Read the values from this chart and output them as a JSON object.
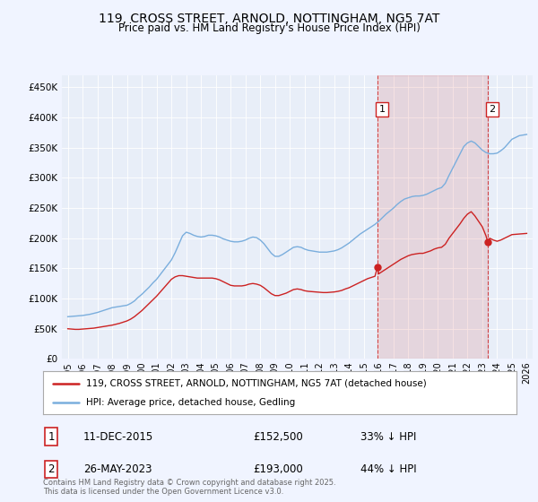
{
  "title": "119, CROSS STREET, ARNOLD, NOTTINGHAM, NG5 7AT",
  "subtitle": "Price paid vs. HM Land Registry's House Price Index (HPI)",
  "background_color": "#f0f4ff",
  "plot_bg_color": "#e8eef8",
  "ylim": [
    0,
    470000
  ],
  "yticks": [
    0,
    50000,
    100000,
    150000,
    200000,
    250000,
    300000,
    350000,
    400000,
    450000
  ],
  "ytick_labels": [
    "£0",
    "£50K",
    "£100K",
    "£150K",
    "£200K",
    "£250K",
    "£300K",
    "£350K",
    "£400K",
    "£450K"
  ],
  "hpi_color": "#7aaedd",
  "price_color": "#cc2222",
  "marker1_year": 2015.92,
  "marker1_price": 152500,
  "marker1_label": "1",
  "marker2_year": 2023.38,
  "marker2_price": 193000,
  "marker2_label": "2",
  "sale1_date": "11-DEC-2015",
  "sale1_price": "£152,500",
  "sale1_note": "33% ↓ HPI",
  "sale2_date": "26-MAY-2023",
  "sale2_price": "£193,000",
  "sale2_note": "44% ↓ HPI",
  "legend_line1": "119, CROSS STREET, ARNOLD, NOTTINGHAM, NG5 7AT (detached house)",
  "legend_line2": "HPI: Average price, detached house, Gedling",
  "footer": "Contains HM Land Registry data © Crown copyright and database right 2025.\nThis data is licensed under the Open Government Licence v3.0.",
  "hpi_data": [
    [
      1995.0,
      70000
    ],
    [
      1995.25,
      70500
    ],
    [
      1995.5,
      71000
    ],
    [
      1995.75,
      71500
    ],
    [
      1996.0,
      72000
    ],
    [
      1996.25,
      73000
    ],
    [
      1996.5,
      74000
    ],
    [
      1996.75,
      75500
    ],
    [
      1997.0,
      77000
    ],
    [
      1997.25,
      79000
    ],
    [
      1997.5,
      81000
    ],
    [
      1997.75,
      83000
    ],
    [
      1998.0,
      85000
    ],
    [
      1998.25,
      86000
    ],
    [
      1998.5,
      87000
    ],
    [
      1998.75,
      88000
    ],
    [
      1999.0,
      89000
    ],
    [
      1999.25,
      92000
    ],
    [
      1999.5,
      96000
    ],
    [
      1999.75,
      102000
    ],
    [
      2000.0,
      107000
    ],
    [
      2000.25,
      113000
    ],
    [
      2000.5,
      119000
    ],
    [
      2000.75,
      126000
    ],
    [
      2001.0,
      132000
    ],
    [
      2001.25,
      140000
    ],
    [
      2001.5,
      148000
    ],
    [
      2001.75,
      156000
    ],
    [
      2002.0,
      164000
    ],
    [
      2002.25,
      176000
    ],
    [
      2002.5,
      190000
    ],
    [
      2002.75,
      204000
    ],
    [
      2003.0,
      210000
    ],
    [
      2003.25,
      208000
    ],
    [
      2003.5,
      205000
    ],
    [
      2003.75,
      203000
    ],
    [
      2004.0,
      202000
    ],
    [
      2004.25,
      203000
    ],
    [
      2004.5,
      205000
    ],
    [
      2004.75,
      205000
    ],
    [
      2005.0,
      204000
    ],
    [
      2005.25,
      202000
    ],
    [
      2005.5,
      199000
    ],
    [
      2005.75,
      197000
    ],
    [
      2006.0,
      195000
    ],
    [
      2006.25,
      194000
    ],
    [
      2006.5,
      194000
    ],
    [
      2006.75,
      195000
    ],
    [
      2007.0,
      197000
    ],
    [
      2007.25,
      200000
    ],
    [
      2007.5,
      202000
    ],
    [
      2007.75,
      201000
    ],
    [
      2008.0,
      197000
    ],
    [
      2008.25,
      191000
    ],
    [
      2008.5,
      183000
    ],
    [
      2008.75,
      175000
    ],
    [
      2009.0,
      170000
    ],
    [
      2009.25,
      170000
    ],
    [
      2009.5,
      173000
    ],
    [
      2009.75,
      177000
    ],
    [
      2010.0,
      181000
    ],
    [
      2010.25,
      185000
    ],
    [
      2010.5,
      186000
    ],
    [
      2010.75,
      185000
    ],
    [
      2011.0,
      182000
    ],
    [
      2011.25,
      180000
    ],
    [
      2011.5,
      179000
    ],
    [
      2011.75,
      178000
    ],
    [
      2012.0,
      177000
    ],
    [
      2012.25,
      177000
    ],
    [
      2012.5,
      177000
    ],
    [
      2012.75,
      178000
    ],
    [
      2013.0,
      179000
    ],
    [
      2013.25,
      181000
    ],
    [
      2013.5,
      184000
    ],
    [
      2013.75,
      188000
    ],
    [
      2014.0,
      192000
    ],
    [
      2014.25,
      197000
    ],
    [
      2014.5,
      202000
    ],
    [
      2014.75,
      207000
    ],
    [
      2015.0,
      211000
    ],
    [
      2015.25,
      215000
    ],
    [
      2015.5,
      219000
    ],
    [
      2015.75,
      223000
    ],
    [
      2016.0,
      228000
    ],
    [
      2016.25,
      234000
    ],
    [
      2016.5,
      240000
    ],
    [
      2016.75,
      245000
    ],
    [
      2017.0,
      250000
    ],
    [
      2017.25,
      256000
    ],
    [
      2017.5,
      261000
    ],
    [
      2017.75,
      265000
    ],
    [
      2018.0,
      267000
    ],
    [
      2018.25,
      269000
    ],
    [
      2018.5,
      270000
    ],
    [
      2018.75,
      270000
    ],
    [
      2019.0,
      271000
    ],
    [
      2019.25,
      273000
    ],
    [
      2019.5,
      276000
    ],
    [
      2019.75,
      279000
    ],
    [
      2020.0,
      282000
    ],
    [
      2020.25,
      284000
    ],
    [
      2020.5,
      291000
    ],
    [
      2020.75,
      304000
    ],
    [
      2021.0,
      316000
    ],
    [
      2021.25,
      328000
    ],
    [
      2021.5,
      340000
    ],
    [
      2021.75,
      352000
    ],
    [
      2022.0,
      358000
    ],
    [
      2022.25,
      361000
    ],
    [
      2022.5,
      358000
    ],
    [
      2022.75,
      352000
    ],
    [
      2023.0,
      346000
    ],
    [
      2023.25,
      342000
    ],
    [
      2023.5,
      340000
    ],
    [
      2023.75,
      340000
    ],
    [
      2024.0,
      341000
    ],
    [
      2024.25,
      345000
    ],
    [
      2024.5,
      350000
    ],
    [
      2024.75,
      357000
    ],
    [
      2025.0,
      364000
    ],
    [
      2025.5,
      370000
    ],
    [
      2026.0,
      372000
    ]
  ],
  "price_data": [
    [
      1995.0,
      50000
    ],
    [
      1995.25,
      49500
    ],
    [
      1995.5,
      49000
    ],
    [
      1995.75,
      49000
    ],
    [
      1996.0,
      49500
    ],
    [
      1996.25,
      50000
    ],
    [
      1996.5,
      50500
    ],
    [
      1996.75,
      51000
    ],
    [
      1997.0,
      52000
    ],
    [
      1997.25,
      53000
    ],
    [
      1997.5,
      54000
    ],
    [
      1997.75,
      55000
    ],
    [
      1998.0,
      56000
    ],
    [
      1998.25,
      57500
    ],
    [
      1998.5,
      59000
    ],
    [
      1998.75,
      61000
    ],
    [
      1999.0,
      63000
    ],
    [
      1999.25,
      66000
    ],
    [
      1999.5,
      70000
    ],
    [
      1999.75,
      75000
    ],
    [
      2000.0,
      80000
    ],
    [
      2000.25,
      86000
    ],
    [
      2000.5,
      92000
    ],
    [
      2000.75,
      98000
    ],
    [
      2001.0,
      104000
    ],
    [
      2001.25,
      111000
    ],
    [
      2001.5,
      118000
    ],
    [
      2001.75,
      125000
    ],
    [
      2002.0,
      132000
    ],
    [
      2002.25,
      136000
    ],
    [
      2002.5,
      138000
    ],
    [
      2002.75,
      138000
    ],
    [
      2003.0,
      137000
    ],
    [
      2003.25,
      136000
    ],
    [
      2003.5,
      135000
    ],
    [
      2003.75,
      134000
    ],
    [
      2004.0,
      134000
    ],
    [
      2004.25,
      134000
    ],
    [
      2004.5,
      134000
    ],
    [
      2004.75,
      134000
    ],
    [
      2005.0,
      133000
    ],
    [
      2005.25,
      131000
    ],
    [
      2005.5,
      128000
    ],
    [
      2005.75,
      125000
    ],
    [
      2006.0,
      122000
    ],
    [
      2006.25,
      121000
    ],
    [
      2006.5,
      121000
    ],
    [
      2006.75,
      121000
    ],
    [
      2007.0,
      122000
    ],
    [
      2007.25,
      124000
    ],
    [
      2007.5,
      125000
    ],
    [
      2007.75,
      124000
    ],
    [
      2008.0,
      122000
    ],
    [
      2008.25,
      118000
    ],
    [
      2008.5,
      113000
    ],
    [
      2008.75,
      108000
    ],
    [
      2009.0,
      105000
    ],
    [
      2009.25,
      105000
    ],
    [
      2009.5,
      107000
    ],
    [
      2009.75,
      109000
    ],
    [
      2010.0,
      112000
    ],
    [
      2010.25,
      115000
    ],
    [
      2010.5,
      116000
    ],
    [
      2010.75,
      115000
    ],
    [
      2011.0,
      113000
    ],
    [
      2011.25,
      112000
    ],
    [
      2011.5,
      111500
    ],
    [
      2011.75,
      111000
    ],
    [
      2012.0,
      110500
    ],
    [
      2012.25,
      110000
    ],
    [
      2012.5,
      110000
    ],
    [
      2012.75,
      110500
    ],
    [
      2013.0,
      111000
    ],
    [
      2013.25,
      112000
    ],
    [
      2013.5,
      113500
    ],
    [
      2013.75,
      116000
    ],
    [
      2014.0,
      118000
    ],
    [
      2014.25,
      121000
    ],
    [
      2014.5,
      124000
    ],
    [
      2014.75,
      127000
    ],
    [
      2015.0,
      130000
    ],
    [
      2015.25,
      133000
    ],
    [
      2015.5,
      135000
    ],
    [
      2015.75,
      137000
    ],
    [
      2015.92,
      152500
    ],
    [
      2016.0,
      141000
    ],
    [
      2016.25,
      145000
    ],
    [
      2016.5,
      149000
    ],
    [
      2016.75,
      153000
    ],
    [
      2017.0,
      157000
    ],
    [
      2017.25,
      161000
    ],
    [
      2017.5,
      165000
    ],
    [
      2017.75,
      168000
    ],
    [
      2018.0,
      171000
    ],
    [
      2018.25,
      173000
    ],
    [
      2018.5,
      174000
    ],
    [
      2018.75,
      175000
    ],
    [
      2019.0,
      175000
    ],
    [
      2019.25,
      177000
    ],
    [
      2019.5,
      179000
    ],
    [
      2019.75,
      182000
    ],
    [
      2020.0,
      184000
    ],
    [
      2020.25,
      185000
    ],
    [
      2020.5,
      190000
    ],
    [
      2020.75,
      200000
    ],
    [
      2021.0,
      208000
    ],
    [
      2021.25,
      216000
    ],
    [
      2021.5,
      224000
    ],
    [
      2021.75,
      233000
    ],
    [
      2022.0,
      240000
    ],
    [
      2022.25,
      244000
    ],
    [
      2022.5,
      237000
    ],
    [
      2022.75,
      228000
    ],
    [
      2023.0,
      219000
    ],
    [
      2023.25,
      204000
    ],
    [
      2023.38,
      193000
    ],
    [
      2023.5,
      200000
    ],
    [
      2023.75,
      197000
    ],
    [
      2024.0,
      195000
    ],
    [
      2024.25,
      197000
    ],
    [
      2024.5,
      200000
    ],
    [
      2024.75,
      203000
    ],
    [
      2025.0,
      206000
    ],
    [
      2025.5,
      207000
    ],
    [
      2026.0,
      208000
    ]
  ]
}
